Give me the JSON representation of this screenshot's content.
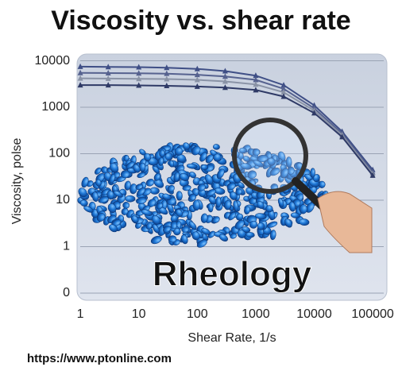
{
  "chart_data": {
    "type": "line",
    "title": "Viscosity vs. shear rate",
    "x_label": "Shear Rate, 1/s",
    "y_label": "Viscosity, polse",
    "overlay_text": "Rheology",
    "source": "https://www.ptonline.com",
    "x": [
      1,
      3,
      10,
      30,
      100,
      300,
      1000,
      3000,
      10000,
      30000,
      100000
    ],
    "series": [
      {
        "color": "#3f4f86",
        "values": [
          7500,
          7400,
          7300,
          7100,
          6700,
          6000,
          4800,
          3000,
          1100,
          300,
          45
        ]
      },
      {
        "color": "#56628f",
        "values": [
          5500,
          5450,
          5400,
          5300,
          5000,
          4600,
          3900,
          2500,
          950,
          270,
          40
        ]
      },
      {
        "color": "#8a93a6",
        "values": [
          4200,
          4150,
          4100,
          4050,
          3900,
          3600,
          3100,
          2100,
          850,
          250,
          37
        ]
      },
      {
        "color": "#2f3a66",
        "values": [
          3000,
          3000,
          2950,
          2900,
          2800,
          2650,
          2350,
          1700,
          750,
          230,
          34
        ]
      }
    ],
    "log_x": true,
    "log_y": true,
    "xlim": [
      0.88,
      175000
    ],
    "xticks": [
      1,
      10,
      100,
      1000,
      10000,
      100000
    ],
    "ylim": [
      0.07,
      14000
    ],
    "yticks": [
      {
        "value": 0.1,
        "label": "0"
      },
      1,
      10,
      100,
      1000,
      10000
    ],
    "grid": true
  }
}
